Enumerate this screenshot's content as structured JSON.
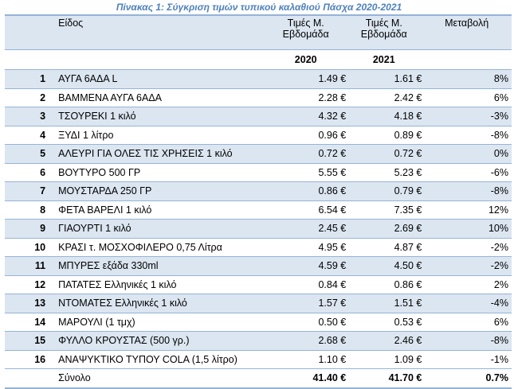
{
  "caption": "Πίνακας 1: Σύγκριση τιμών τυπικού καλαθιού Πάσχα 2020-2021",
  "header": {
    "item": "Είδος",
    "price_col_line1": "Τιμές Μ.",
    "price_col_line2": "Εβδομάδα",
    "change": "Μεταβολή",
    "year1": "2020",
    "year2": "2021"
  },
  "rows": [
    {
      "no": "1",
      "item": "ΑΥΓΑ 6ΑΔΑ L",
      "p2020": "1.49 €",
      "p2021": "1.61 €",
      "change": "8%"
    },
    {
      "no": "2",
      "item": "ΒΑΜΜΕΝΑ ΑΥΓΑ 6ΑΔΑ",
      "p2020": "2.28 €",
      "p2021": "2.42 €",
      "change": "6%"
    },
    {
      "no": "3",
      "item": "ΤΣΟΥΡΕΚΙ 1 κιλό",
      "p2020": "4.32 €",
      "p2021": "4.18 €",
      "change": "-3%"
    },
    {
      "no": "4",
      "item": "ΞΥΔΙ 1 λίτρο",
      "p2020": "0.96 €",
      "p2021": "0.89 €",
      "change": "-8%"
    },
    {
      "no": "5",
      "item": "ΑΛΕΥΡΙ ΓΙΑ ΟΛΕΣ ΤΙΣ ΧΡΗΣΕΙΣ 1 κιλό",
      "p2020": "0.72 €",
      "p2021": "0.72 €",
      "change": "0%"
    },
    {
      "no": "6",
      "item": "ΒΟΥΤΥΡΟ 500 ΓΡ",
      "p2020": "5.55 €",
      "p2021": "5.23 €",
      "change": "-6%"
    },
    {
      "no": "7",
      "item": "ΜΟΥΣΤΑΡΔΑ 250 ΓΡ",
      "p2020": "0.86 €",
      "p2021": "0.79 €",
      "change": "-8%"
    },
    {
      "no": "8",
      "item": "ΦΕΤΑ ΒΑΡΕΛΙ 1 κιλό",
      "p2020": "6.54 €",
      "p2021": "7.35 €",
      "change": "12%"
    },
    {
      "no": "9",
      "item": "ΓΙΑΟΥΡΤΙ 1 κιλό",
      "p2020": "2.45 €",
      "p2021": "2.69 €",
      "change": "10%"
    },
    {
      "no": "10",
      "item": "ΚΡΑΣΙ τ. ΜΟΣΧΟΦΙΛΕΡΟ 0,75 Λίτρα",
      "p2020": "4.95 €",
      "p2021": "4.87 €",
      "change": "-2%"
    },
    {
      "no": "11",
      "item": "ΜΠΥΡΕΣ εξάδα 330ml",
      "p2020": "4.59 €",
      "p2021": "4.50 €",
      "change": "-2%"
    },
    {
      "no": "12",
      "item": "ΠΑΤΑΤΕΣ Ελληνικές 1 κιλό",
      "p2020": "0.84 €",
      "p2021": "0.86 €",
      "change": "2%"
    },
    {
      "no": "13",
      "item": "ΝΤΟΜΑΤΕΣ Ελληνικές 1 κιλό",
      "p2020": "1.57 €",
      "p2021": "1.51 €",
      "change": "-4%"
    },
    {
      "no": "14",
      "item": "ΜΑΡΟΥΛΙ (1 τμχ)",
      "p2020": "0.50 €",
      "p2021": "0.53 €",
      "change": "6%"
    },
    {
      "no": "15",
      "item": "ΦΥΛΛΟ ΚΡΟΥΣΤΑΣ (500 γρ.)",
      "p2020": "2.68 €",
      "p2021": "2.46 €",
      "change": "-8%"
    },
    {
      "no": "16",
      "item": "ΑΝΑΨΥΚΤΙΚΟ ΤΥΠΟΥ COLA (1,5 λίτρο)",
      "p2020": "1.10 €",
      "p2021": "1.09 €",
      "change": "-1%"
    }
  ],
  "total": {
    "label": "Σύνολο",
    "p2020": "41.40 €",
    "p2021": "41.70 €",
    "change": "0.7%"
  }
}
